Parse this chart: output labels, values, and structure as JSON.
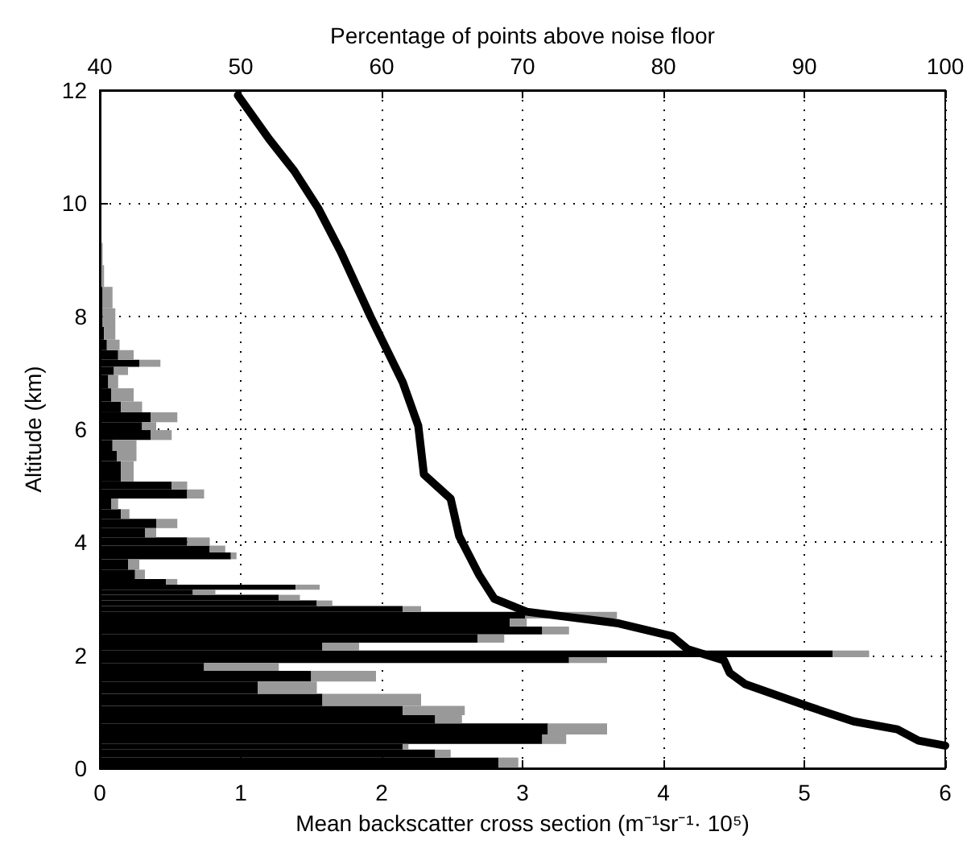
{
  "chart_data": {
    "type": "bar",
    "orientation": "horizontal",
    "xlabel": "Mean backscatter cross section (m⁻¹sr⁻¹· 10⁵)",
    "x2label": "Percentage of points above noise floor",
    "ylabel": "Altitude (km)",
    "x": [
      0.1,
      0.28,
      0.38,
      0.48,
      0.72,
      0.87,
      1.01,
      1.2,
      1.44,
      1.63,
      1.82,
      1.91,
      2.02,
      2.15,
      2.3,
      2.44,
      2.58,
      2.72,
      2.82,
      2.92,
      3.02,
      3.12,
      3.2,
      3.3,
      3.4,
      3.63,
      3.77,
      3.87,
      4.01,
      4.16,
      4.34,
      4.49,
      4.68,
      4.87,
      5.0,
      5.15,
      5.34,
      5.53,
      5.7,
      5.92,
      6.05,
      6.2,
      6.4,
      6.58,
      6.87,
      7.05,
      7.16,
      7.3,
      7.5,
      7.67,
      7.95,
      8.33,
      8.71,
      9.1,
      9.5
    ],
    "series": [
      {
        "color": "#000000",
        "values": [
          2.83,
          2.38,
          2.15,
          3.14,
          3.18,
          2.38,
          2.15,
          1.58,
          1.12,
          1.5,
          0.74,
          3.33,
          5.2,
          1.58,
          2.68,
          3.14,
          2.91,
          3.02,
          2.15,
          1.54,
          1.27,
          0.66,
          1.39,
          0.47,
          0.25,
          0.2,
          0.93,
          0.78,
          0.62,
          0.32,
          0.4,
          0.15,
          0.08,
          0.62,
          0.51,
          0.15,
          0.15,
          0.12,
          0.09,
          0.36,
          0.3,
          0.36,
          0.15,
          0.08,
          0.06,
          0.1,
          0.28,
          0.13,
          0.05,
          0.03,
          0.02,
          0.02,
          0.01,
          0.01,
          0.01
        ]
      },
      {
        "color": "#999999",
        "values": [
          0.14,
          0.11,
          0.04,
          0.17,
          0.42,
          0.19,
          0.44,
          0.7,
          0.42,
          0.46,
          0.53,
          0.27,
          0.26,
          0.26,
          0.19,
          0.19,
          0.12,
          0.65,
          0.13,
          0.11,
          0.15,
          0.16,
          0.17,
          0.08,
          0.07,
          0.08,
          0.04,
          0.11,
          0.16,
          0.08,
          0.15,
          0.06,
          0.05,
          0.12,
          0.11,
          0.09,
          0.09,
          0.14,
          0.17,
          0.15,
          0.1,
          0.19,
          0.15,
          0.16,
          0.07,
          0.1,
          0.15,
          0.11,
          0.09,
          0.08,
          0.09,
          0.07,
          0.02,
          0.01,
          0
        ]
      },
      {
        "type": "line",
        "axis": "x2",
        "color": "#000000",
        "line_style": "solid",
        "x": [
          0.4,
          0.49,
          0.69,
          0.83,
          1.11,
          1.49,
          1.69,
          1.91,
          2.11,
          2.34,
          2.57,
          2.77,
          3.0,
          3.43,
          4.11,
          4.77,
          5.2,
          6.06,
          6.83,
          8.0,
          9.14,
          9.91,
          10.57,
          11.14,
          11.91
        ],
        "values": [
          100,
          98.1,
          96.6,
          93.5,
          90.1,
          85.8,
          84.7,
          84.3,
          81.7,
          80.6,
          76.7,
          70.3,
          68.0,
          66.9,
          65.5,
          64.9,
          63.0,
          62.6,
          61.5,
          59.2,
          57.1,
          55.5,
          53.8,
          52.0,
          49.8
        ]
      }
    ],
    "stacked": true,
    "marker": "none",
    "xlim": [
      0,
      6
    ],
    "xticks": [
      0,
      1,
      2,
      3,
      4,
      5,
      6
    ],
    "x2lim": [
      40,
      100
    ],
    "x2ticks": [
      40,
      50,
      60,
      70,
      80,
      90,
      100
    ],
    "ylim": [
      0,
      12
    ],
    "yticks": [
      0,
      2,
      4,
      6,
      8,
      10,
      12
    ],
    "grid": true
  }
}
